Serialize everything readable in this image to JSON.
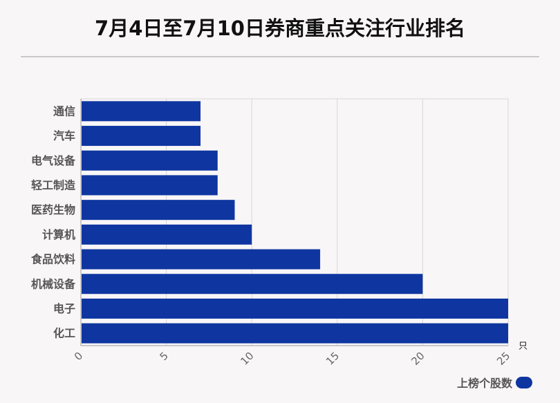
{
  "title": "7月4日至7月10日券商重点关注行业排名",
  "chart_data": {
    "type": "bar",
    "orientation": "horizontal",
    "categories": [
      "通信",
      "汽车",
      "电气设备",
      "轻工制造",
      "医药生物",
      "计算机",
      "食品饮料",
      "机械设备",
      "电子",
      "化工"
    ],
    "series": [
      {
        "name": "上榜个股数",
        "values": [
          7,
          7,
          8,
          8,
          9,
          10,
          14,
          20,
          25,
          25
        ]
      }
    ],
    "xlim": [
      0,
      25
    ],
    "xticks": [
      0,
      5,
      10,
      15,
      20,
      25
    ],
    "xunit": "只",
    "grid": true,
    "legend_position": "bottom-right",
    "bar_color": "#0f36a0"
  }
}
